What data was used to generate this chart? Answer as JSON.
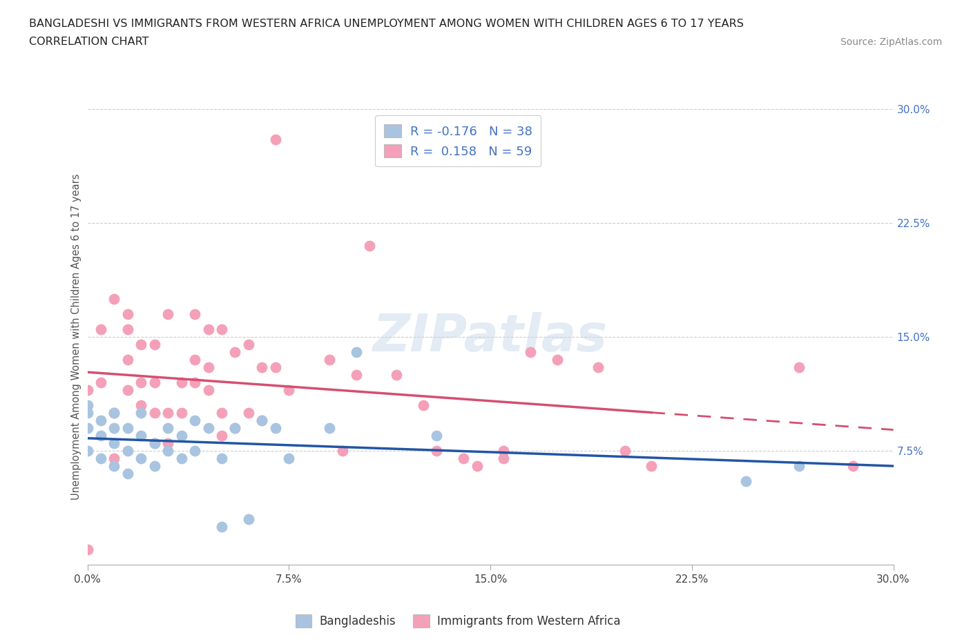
{
  "title_line1": "BANGLADESHI VS IMMIGRANTS FROM WESTERN AFRICA UNEMPLOYMENT AMONG WOMEN WITH CHILDREN AGES 6 TO 17 YEARS",
  "title_line2": "CORRELATION CHART",
  "source_text": "Source: ZipAtlas.com",
  "ylabel": "Unemployment Among Women with Children Ages 6 to 17 years",
  "xlim": [
    0.0,
    0.3
  ],
  "ylim": [
    0.0,
    0.3
  ],
  "xtick_vals": [
    0.0,
    0.075,
    0.15,
    0.225,
    0.3
  ],
  "xtick_labels": [
    "0.0%",
    "7.5%",
    "15.0%",
    "22.5%",
    "30.0%"
  ],
  "ytick_vals_right": [
    0.075,
    0.15,
    0.225,
    0.3
  ],
  "ytick_labels_right": [
    "7.5%",
    "15.0%",
    "22.5%",
    "30.0%"
  ],
  "blue_color": "#a8c4e0",
  "pink_color": "#f4a0b8",
  "blue_line_color": "#2255a4",
  "pink_line_color": "#d44f70",
  "R_blue": -0.176,
  "N_blue": 38,
  "R_pink": 0.158,
  "N_pink": 59,
  "legend_label_blue": "Bangladeshis",
  "legend_label_pink": "Immigrants from Western Africa",
  "watermark": "ZIPatlas",
  "blue_scatter_x": [
    0.0,
    0.0,
    0.0,
    0.0,
    0.005,
    0.005,
    0.005,
    0.01,
    0.01,
    0.01,
    0.01,
    0.015,
    0.015,
    0.015,
    0.02,
    0.02,
    0.02,
    0.025,
    0.025,
    0.03,
    0.03,
    0.035,
    0.035,
    0.04,
    0.04,
    0.045,
    0.05,
    0.05,
    0.055,
    0.06,
    0.065,
    0.07,
    0.075,
    0.09,
    0.1,
    0.13,
    0.245,
    0.265
  ],
  "blue_scatter_y": [
    0.075,
    0.09,
    0.1,
    0.105,
    0.07,
    0.085,
    0.095,
    0.065,
    0.08,
    0.09,
    0.1,
    0.06,
    0.075,
    0.09,
    0.07,
    0.085,
    0.1,
    0.065,
    0.08,
    0.075,
    0.09,
    0.07,
    0.085,
    0.075,
    0.095,
    0.09,
    0.025,
    0.07,
    0.09,
    0.03,
    0.095,
    0.09,
    0.07,
    0.09,
    0.14,
    0.085,
    0.055,
    0.065
  ],
  "pink_scatter_x": [
    0.0,
    0.0,
    0.005,
    0.005,
    0.01,
    0.01,
    0.01,
    0.015,
    0.015,
    0.015,
    0.02,
    0.02,
    0.02,
    0.025,
    0.025,
    0.025,
    0.025,
    0.03,
    0.03,
    0.03,
    0.035,
    0.035,
    0.04,
    0.04,
    0.04,
    0.045,
    0.045,
    0.045,
    0.05,
    0.05,
    0.05,
    0.055,
    0.055,
    0.06,
    0.06,
    0.065,
    0.065,
    0.07,
    0.075,
    0.09,
    0.095,
    0.105,
    0.115,
    0.13,
    0.145,
    0.155,
    0.175,
    0.2,
    0.21,
    0.265,
    0.285,
    0.015,
    0.07,
    0.1,
    0.125,
    0.14,
    0.155,
    0.165,
    0.19
  ],
  "pink_scatter_y": [
    0.01,
    0.115,
    0.12,
    0.155,
    0.07,
    0.1,
    0.175,
    0.115,
    0.135,
    0.165,
    0.105,
    0.12,
    0.145,
    0.08,
    0.1,
    0.12,
    0.145,
    0.08,
    0.1,
    0.165,
    0.1,
    0.12,
    0.12,
    0.135,
    0.165,
    0.115,
    0.13,
    0.155,
    0.085,
    0.1,
    0.155,
    0.09,
    0.14,
    0.1,
    0.145,
    0.095,
    0.13,
    0.28,
    0.115,
    0.135,
    0.075,
    0.21,
    0.125,
    0.075,
    0.065,
    0.075,
    0.135,
    0.075,
    0.065,
    0.13,
    0.065,
    0.155,
    0.13,
    0.125,
    0.105,
    0.07,
    0.07,
    0.14,
    0.13
  ]
}
